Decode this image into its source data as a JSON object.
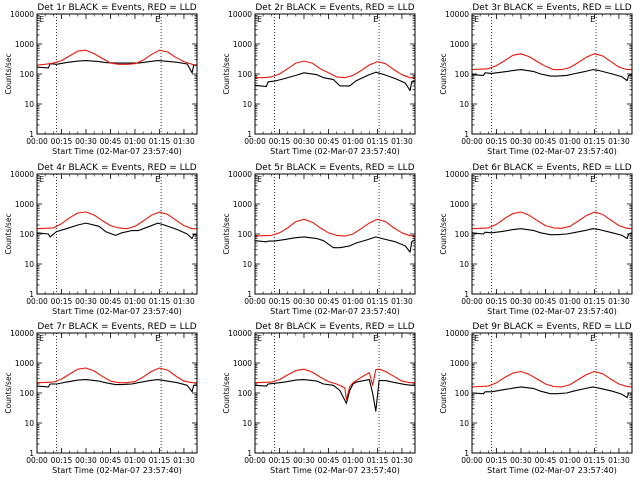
{
  "colors": {
    "events": "#000000",
    "lld": "#e8190e",
    "axis": "#000000",
    "background": "#ffffff"
  },
  "panel_layout": {
    "rows": 3,
    "columns": 3
  },
  "x_axis": {
    "ticks": [
      0,
      15,
      30,
      45,
      60,
      75,
      90
    ],
    "tick_labels": [
      "00:00",
      "00:15",
      "00:30",
      "00:45",
      "01:00",
      "01:15",
      "01:30"
    ],
    "xlim": [
      0,
      98
    ],
    "vlines": [
      12,
      76
    ]
  },
  "y_axis": {
    "scale": "log",
    "ylim": [
      1,
      10000
    ],
    "major_ticks": [
      1,
      10,
      100,
      1000,
      10000
    ],
    "tick_labels": [
      "1",
      "10",
      "100",
      "1000",
      "10000"
    ]
  },
  "corner_markers": [
    "E",
    "E"
  ],
  "chart_data": [
    {
      "type": "line",
      "panel": "1r",
      "title": "Det 1r BLACK = Events, RED = LLD",
      "xlabel": "Start Time (02-Mar-07 23:57:40)",
      "ylabel": "Counts/sec",
      "ylim": [
        1,
        10000
      ],
      "y_scale": "log",
      "series": [
        {
          "name": "Events",
          "color": "#000000",
          "x": [
            0,
            7,
            8,
            12,
            18,
            25,
            30,
            38,
            42,
            48,
            52,
            58,
            62,
            69,
            74,
            78,
            86,
            92,
            95,
            96,
            98
          ],
          "values": [
            170,
            160,
            220,
            210,
            240,
            270,
            280,
            260,
            240,
            230,
            230,
            230,
            230,
            260,
            280,
            270,
            245,
            215,
            110,
            200,
            190
          ]
        },
        {
          "name": "LLD",
          "color": "#e8190e",
          "x": [
            0,
            5,
            10,
            15,
            20,
            25,
            30,
            35,
            40,
            45,
            50,
            55,
            60,
            65,
            70,
            75,
            80,
            85,
            90,
            95,
            98
          ],
          "values": [
            200,
            210,
            230,
            280,
            400,
            580,
            620,
            480,
            330,
            230,
            210,
            210,
            220,
            290,
            440,
            620,
            540,
            360,
            260,
            210,
            200
          ]
        }
      ]
    },
    {
      "type": "line",
      "panel": "2r",
      "title": "Det 2r BLACK = Events, RED = LLD",
      "xlabel": "Start Time (02-Mar-07 23:57:40)",
      "ylabel": "Counts/sec",
      "ylim": [
        1,
        10000
      ],
      "y_scale": "log",
      "series": [
        {
          "name": "Events",
          "color": "#000000",
          "x": [
            0,
            7,
            8,
            12,
            18,
            25,
            30,
            38,
            42,
            48,
            52,
            58,
            62,
            69,
            74,
            78,
            86,
            92,
            95,
            96,
            98
          ],
          "values": [
            42,
            38,
            55,
            58,
            70,
            90,
            110,
            95,
            75,
            65,
            40,
            40,
            60,
            90,
            115,
            100,
            70,
            50,
            28,
            55,
            58
          ]
        },
        {
          "name": "LLD",
          "color": "#e8190e",
          "x": [
            0,
            5,
            10,
            15,
            20,
            25,
            30,
            35,
            40,
            45,
            50,
            55,
            60,
            65,
            70,
            75,
            80,
            85,
            90,
            95,
            98
          ],
          "values": [
            75,
            75,
            80,
            100,
            150,
            230,
            270,
            230,
            150,
            110,
            80,
            75,
            90,
            130,
            200,
            260,
            220,
            140,
            95,
            75,
            75
          ]
        }
      ]
    },
    {
      "type": "line",
      "panel": "3r",
      "title": "Det 3r BLACK = Events, RED = LLD",
      "xlabel": "Start Time (02-Mar-07 23:57:40)",
      "ylabel": "Counts/sec",
      "ylim": [
        1,
        10000
      ],
      "y_scale": "log",
      "series": [
        {
          "name": "Events",
          "color": "#000000",
          "x": [
            0,
            7,
            8,
            12,
            18,
            25,
            30,
            38,
            42,
            48,
            52,
            58,
            62,
            69,
            74,
            78,
            86,
            92,
            95,
            96,
            98
          ],
          "values": [
            95,
            90,
            110,
            105,
            115,
            130,
            140,
            120,
            100,
            85,
            85,
            90,
            100,
            120,
            140,
            130,
            100,
            80,
            60,
            90,
            95
          ]
        },
        {
          "name": "LLD",
          "color": "#e8190e",
          "x": [
            0,
            5,
            10,
            15,
            20,
            25,
            30,
            35,
            40,
            45,
            50,
            55,
            60,
            65,
            70,
            75,
            80,
            85,
            90,
            95,
            98
          ],
          "values": [
            140,
            145,
            150,
            190,
            280,
            420,
            470,
            380,
            260,
            180,
            140,
            140,
            165,
            240,
            360,
            470,
            400,
            260,
            170,
            140,
            140
          ]
        }
      ]
    },
    {
      "type": "line",
      "panel": "4r",
      "title": "Det 4r BLACK = Events, RED = LLD",
      "xlabel": "Start Time (02-Mar-07 23:57:40)",
      "ylabel": "Counts/sec",
      "ylim": [
        1,
        10000
      ],
      "y_scale": "log",
      "series": [
        {
          "name": "Events",
          "color": "#000000",
          "x": [
            0,
            7,
            8,
            12,
            18,
            25,
            30,
            38,
            42,
            48,
            52,
            58,
            62,
            69,
            74,
            78,
            86,
            92,
            95,
            96,
            98
          ],
          "values": [
            110,
            100,
            80,
            120,
            150,
            200,
            230,
            180,
            120,
            90,
            110,
            130,
            130,
            180,
            230,
            200,
            140,
            100,
            70,
            95,
            100
          ]
        },
        {
          "name": "LLD",
          "color": "#e8190e",
          "x": [
            0,
            5,
            10,
            15,
            20,
            25,
            30,
            35,
            40,
            45,
            50,
            55,
            60,
            65,
            70,
            75,
            80,
            85,
            90,
            95,
            98
          ],
          "values": [
            150,
            155,
            160,
            220,
            350,
            500,
            540,
            430,
            280,
            190,
            160,
            150,
            180,
            270,
            420,
            540,
            450,
            290,
            190,
            150,
            150
          ]
        }
      ]
    },
    {
      "type": "line",
      "panel": "5r",
      "title": "Det 5r BLACK = Events, RED = LLD",
      "xlabel": "Start Time (02-Mar-07 23:57:40)",
      "ylabel": "Counts/sec",
      "ylim": [
        1,
        10000
      ],
      "y_scale": "log",
      "series": [
        {
          "name": "Events",
          "color": "#000000",
          "x": [
            0,
            7,
            8,
            12,
            18,
            25,
            30,
            38,
            42,
            48,
            52,
            58,
            62,
            69,
            74,
            78,
            86,
            92,
            95,
            96,
            98
          ],
          "values": [
            60,
            55,
            58,
            58,
            65,
            75,
            80,
            70,
            60,
            35,
            35,
            40,
            50,
            65,
            80,
            70,
            55,
            40,
            25,
            55,
            65
          ]
        },
        {
          "name": "LLD",
          "color": "#e8190e",
          "x": [
            0,
            5,
            10,
            15,
            20,
            25,
            30,
            35,
            40,
            45,
            50,
            55,
            60,
            65,
            70,
            75,
            80,
            85,
            90,
            95,
            98
          ],
          "values": [
            85,
            88,
            90,
            110,
            160,
            260,
            310,
            250,
            160,
            110,
            90,
            85,
            100,
            150,
            230,
            310,
            260,
            160,
            110,
            88,
            85
          ]
        }
      ]
    },
    {
      "type": "line",
      "panel": "6r",
      "title": "Det 6r BLACK = Events, RED = LLD",
      "xlabel": "Start Time (02-Mar-07 23:57:40)",
      "ylabel": "Counts/sec",
      "ylim": [
        1,
        10000
      ],
      "y_scale": "log",
      "series": [
        {
          "name": "Events",
          "color": "#000000",
          "x": [
            0,
            7,
            8,
            12,
            18,
            25,
            30,
            38,
            42,
            48,
            52,
            58,
            62,
            69,
            74,
            78,
            86,
            92,
            95,
            96,
            98
          ],
          "values": [
            110,
            100,
            115,
            110,
            120,
            140,
            150,
            130,
            110,
            95,
            95,
            100,
            110,
            130,
            150,
            140,
            110,
            90,
            70,
            100,
            110
          ]
        },
        {
          "name": "LLD",
          "color": "#e8190e",
          "x": [
            0,
            5,
            10,
            15,
            20,
            25,
            30,
            35,
            40,
            45,
            50,
            55,
            60,
            65,
            70,
            75,
            80,
            85,
            90,
            95,
            98
          ],
          "values": [
            150,
            155,
            160,
            210,
            330,
            480,
            540,
            420,
            280,
            190,
            160,
            155,
            180,
            270,
            410,
            540,
            450,
            290,
            190,
            155,
            150
          ]
        }
      ]
    },
    {
      "type": "line",
      "panel": "7r",
      "title": "Det 7r BLACK = Events, RED = LLD",
      "xlabel": "Start Time (02-Mar-07 23:57:40)",
      "ylabel": "Counts/sec",
      "ylim": [
        1,
        10000
      ],
      "y_scale": "log",
      "series": [
        {
          "name": "Events",
          "color": "#000000",
          "x": [
            0,
            7,
            8,
            12,
            18,
            25,
            30,
            38,
            42,
            48,
            52,
            58,
            62,
            69,
            74,
            78,
            86,
            92,
            95,
            96,
            98
          ],
          "values": [
            170,
            160,
            200,
            200,
            230,
            270,
            280,
            250,
            220,
            190,
            190,
            200,
            220,
            260,
            280,
            260,
            220,
            180,
            110,
            180,
            180
          ]
        },
        {
          "name": "LLD",
          "color": "#e8190e",
          "x": [
            0,
            5,
            10,
            15,
            20,
            25,
            30,
            35,
            40,
            45,
            50,
            55,
            60,
            65,
            70,
            75,
            80,
            85,
            90,
            95,
            98
          ],
          "values": [
            220,
            225,
            230,
            290,
            430,
            620,
            680,
            540,
            360,
            250,
            220,
            220,
            240,
            340,
            520,
            680,
            580,
            370,
            250,
            220,
            220
          ]
        }
      ]
    },
    {
      "type": "line",
      "panel": "8r",
      "title": "Det 8r BLACK = Events, RED = LLD",
      "xlabel": "Start Time (02-Mar-07 23:57:40)",
      "ylabel": "Counts/sec",
      "ylim": [
        1,
        10000
      ],
      "y_scale": "log",
      "series": [
        {
          "name": "Events",
          "color": "#000000",
          "x": [
            0,
            7,
            8,
            12,
            18,
            25,
            30,
            38,
            42,
            48,
            52,
            56,
            58,
            60,
            62,
            70,
            72,
            74,
            76,
            80,
            86,
            92,
            96,
            98
          ],
          "values": [
            180,
            170,
            200,
            210,
            230,
            270,
            280,
            250,
            200,
            180,
            120,
            45,
            120,
            200,
            230,
            280,
            100,
            25,
            260,
            260,
            220,
            190,
            180,
            180
          ]
        },
        {
          "name": "LLD",
          "color": "#e8190e",
          "x": [
            0,
            5,
            10,
            15,
            20,
            25,
            30,
            35,
            40,
            45,
            50,
            55,
            56,
            58,
            60,
            65,
            70,
            72,
            74,
            76,
            80,
            85,
            90,
            95,
            98
          ],
          "values": [
            220,
            225,
            230,
            280,
            400,
            560,
            620,
            500,
            340,
            240,
            200,
            150,
            60,
            160,
            220,
            330,
            480,
            180,
            600,
            620,
            520,
            360,
            250,
            220,
            220
          ]
        }
      ]
    },
    {
      "type": "line",
      "panel": "9r",
      "title": "Det 9r BLACK = Events, RED = LLD",
      "xlabel": "Start Time (02-Mar-07 23:57:40)",
      "ylabel": "Counts/sec",
      "ylim": [
        1,
        10000
      ],
      "y_scale": "log",
      "series": [
        {
          "name": "Events",
          "color": "#000000",
          "x": [
            0,
            7,
            8,
            12,
            18,
            25,
            30,
            38,
            42,
            48,
            52,
            58,
            62,
            69,
            74,
            78,
            86,
            92,
            95,
            96,
            98
          ],
          "values": [
            100,
            95,
            110,
            110,
            125,
            145,
            160,
            140,
            115,
            95,
            95,
            100,
            115,
            140,
            160,
            145,
            115,
            90,
            70,
            100,
            100
          ]
        },
        {
          "name": "LLD",
          "color": "#e8190e",
          "x": [
            0,
            5,
            10,
            15,
            20,
            25,
            30,
            35,
            40,
            45,
            50,
            55,
            60,
            65,
            70,
            75,
            80,
            85,
            90,
            95,
            98
          ],
          "values": [
            160,
            165,
            170,
            220,
            330,
            460,
            520,
            420,
            290,
            200,
            165,
            160,
            190,
            280,
            410,
            520,
            440,
            290,
            200,
            165,
            160
          ]
        }
      ]
    }
  ]
}
